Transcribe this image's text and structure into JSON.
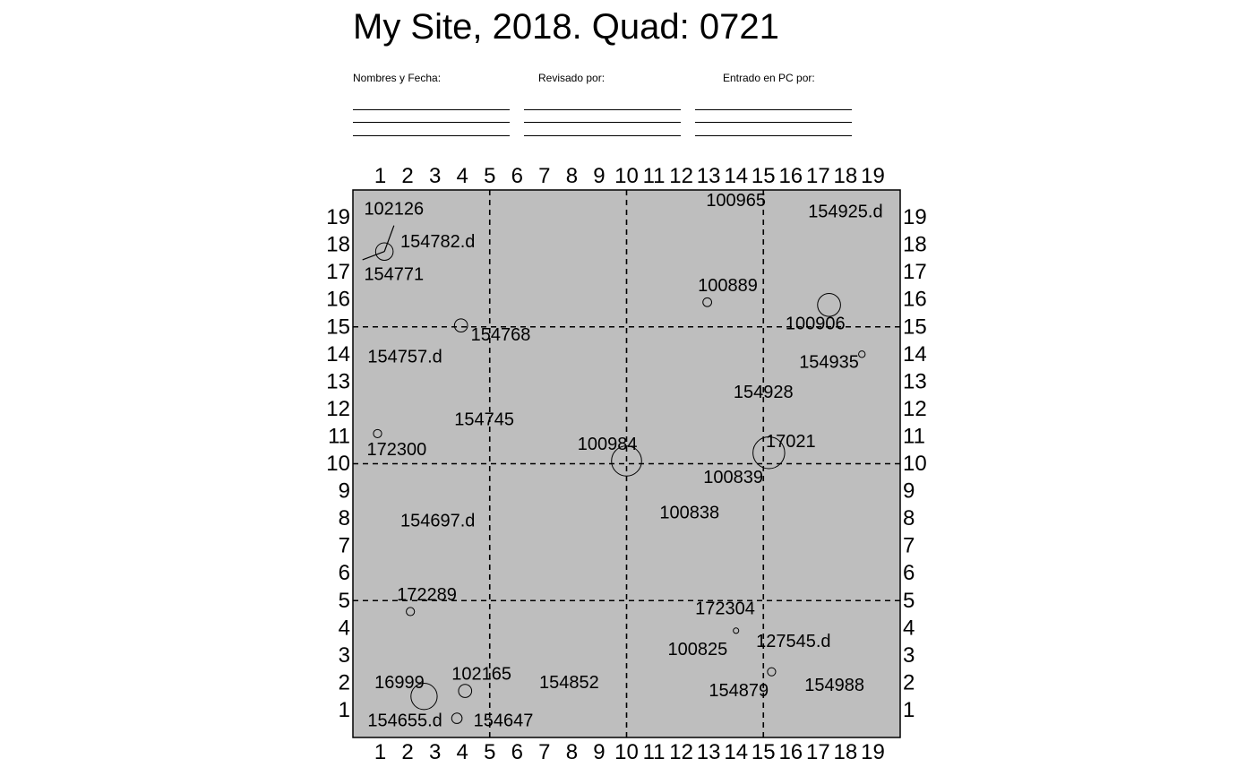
{
  "header": {
    "title": "My Site, 2018. Quad: 0721",
    "signature_labels": [
      "Nombres y Fecha:",
      "Revisado por:",
      "Entrado en PC por:"
    ]
  },
  "colors": {
    "plot_background": "#bebebe",
    "ink": "#000000",
    "page_background": "#ffffff"
  },
  "chart_data": {
    "type": "scatter",
    "title": "My Site, 2018. Quad: 0721",
    "xlabel": "",
    "ylabel": "",
    "xlim": [
      0,
      20
    ],
    "ylim": [
      0,
      20
    ],
    "x_ticks": [
      1,
      2,
      3,
      4,
      5,
      6,
      7,
      8,
      9,
      10,
      11,
      12,
      13,
      14,
      15,
      16,
      17,
      18,
      19
    ],
    "y_ticks": [
      1,
      2,
      3,
      4,
      5,
      6,
      7,
      8,
      9,
      10,
      11,
      12,
      13,
      14,
      15,
      16,
      17,
      18,
      19
    ],
    "tick_sides": [
      "top",
      "bottom",
      "left",
      "right"
    ],
    "dashed_gridlines": {
      "x": [
        5,
        10,
        15
      ],
      "y": [
        5,
        10,
        15
      ]
    },
    "circle_size_unit": "radius in quadrat units (approx.)",
    "labels": [
      {
        "tag": "102126",
        "x": 1.5,
        "y": 19.3
      },
      {
        "tag": "154782.d",
        "x": 3.1,
        "y": 18.1
      },
      {
        "tag": "154771",
        "x": 1.5,
        "y": 16.9
      },
      {
        "tag": "154768",
        "x": 5.4,
        "y": 14.7
      },
      {
        "tag": "154757.d",
        "x": 1.9,
        "y": 13.9
      },
      {
        "tag": "154745",
        "x": 4.8,
        "y": 11.6
      },
      {
        "tag": "172300",
        "x": 1.6,
        "y": 10.5
      },
      {
        "tag": "154697.d",
        "x": 3.1,
        "y": 7.9
      },
      {
        "tag": "172289",
        "x": 2.7,
        "y": 5.2
      },
      {
        "tag": "16999",
        "x": 1.7,
        "y": 2.0
      },
      {
        "tag": "102165",
        "x": 4.7,
        "y": 2.3
      },
      {
        "tag": "154852",
        "x": 7.9,
        "y": 2.0
      },
      {
        "tag": "154655.d",
        "x": 1.9,
        "y": 0.6
      },
      {
        "tag": "154647",
        "x": 5.5,
        "y": 0.6
      },
      {
        "tag": "100965",
        "x": 14.0,
        "y": 19.6
      },
      {
        "tag": "154925.d",
        "x": 18.0,
        "y": 19.2
      },
      {
        "tag": "100889",
        "x": 13.7,
        "y": 16.5
      },
      {
        "tag": "100906",
        "x": 16.9,
        "y": 15.1
      },
      {
        "tag": "154935",
        "x": 17.4,
        "y": 13.7
      },
      {
        "tag": "154928",
        "x": 15.0,
        "y": 12.6
      },
      {
        "tag": "100984",
        "x": 9.3,
        "y": 10.7
      },
      {
        "tag": "17021",
        "x": 16.0,
        "y": 10.8
      },
      {
        "tag": "100839",
        "x": 13.9,
        "y": 9.5
      },
      {
        "tag": "100838",
        "x": 12.3,
        "y": 8.2
      },
      {
        "tag": "172304",
        "x": 13.6,
        "y": 4.7
      },
      {
        "tag": "127545.d",
        "x": 16.1,
        "y": 3.5
      },
      {
        "tag": "100825",
        "x": 12.6,
        "y": 3.2
      },
      {
        "tag": "154879",
        "x": 14.1,
        "y": 1.7
      },
      {
        "tag": "154988",
        "x": 17.6,
        "y": 1.9
      }
    ],
    "circles": [
      {
        "x": 1.15,
        "y": 17.75,
        "r": 0.32
      },
      {
        "x": 3.95,
        "y": 15.05,
        "r": 0.24
      },
      {
        "x": 0.9,
        "y": 11.1,
        "r": 0.15
      },
      {
        "x": 10.0,
        "y": 10.1,
        "r": 0.55
      },
      {
        "x": 15.2,
        "y": 10.4,
        "r": 0.58
      },
      {
        "x": 12.95,
        "y": 15.9,
        "r": 0.16
      },
      {
        "x": 17.4,
        "y": 15.8,
        "r": 0.42
      },
      {
        "x": 18.6,
        "y": 14.0,
        "r": 0.12
      },
      {
        "x": 2.1,
        "y": 4.6,
        "r": 0.15
      },
      {
        "x": 2.6,
        "y": 1.5,
        "r": 0.48
      },
      {
        "x": 4.1,
        "y": 1.7,
        "r": 0.24
      },
      {
        "x": 3.8,
        "y": 0.7,
        "r": 0.19
      },
      {
        "x": 14.0,
        "y": 3.9,
        "r": 0.1
      },
      {
        "x": 15.3,
        "y": 2.4,
        "r": 0.15
      }
    ],
    "leader_segments": [
      {
        "x1": 1.5,
        "y1": 18.7,
        "x2": 1.15,
        "y2": 17.75
      },
      {
        "x1": 0.35,
        "y1": 17.45,
        "x2": 1.15,
        "y2": 17.75
      }
    ]
  }
}
